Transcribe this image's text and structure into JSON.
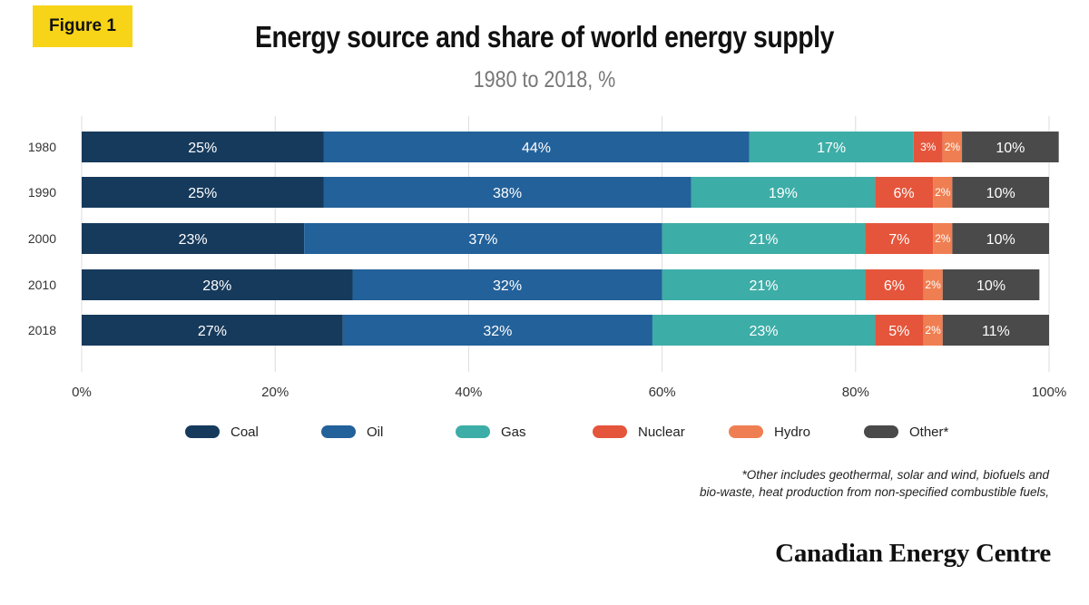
{
  "figure_label": "Figure 1",
  "chart_data": {
    "type": "bar",
    "orientation": "horizontal",
    "stacked": true,
    "title": "Energy source and share of world energy supply",
    "subtitle": "1980 to 2018, %",
    "categories": [
      "1980",
      "1990",
      "2000",
      "2010",
      "2018"
    ],
    "series": [
      {
        "name": "Coal",
        "color": "#163a5c",
        "values": [
          25,
          25,
          23,
          28,
          27
        ]
      },
      {
        "name": "Oil",
        "color": "#23619a",
        "values": [
          44,
          38,
          37,
          32,
          32
        ]
      },
      {
        "name": "Gas",
        "color": "#3dada7",
        "values": [
          17,
          19,
          21,
          21,
          23
        ]
      },
      {
        "name": "Nuclear",
        "color": "#e5553b",
        "values": [
          3,
          6,
          7,
          6,
          5
        ]
      },
      {
        "name": "Hydro",
        "color": "#ef7f52",
        "values": [
          2,
          2,
          2,
          2,
          2
        ]
      },
      {
        "name": "Other*",
        "color": "#4a4a4a",
        "values": [
          10,
          10,
          10,
          10,
          11
        ]
      }
    ],
    "xlim": [
      0,
      100
    ],
    "x_ticks": [
      "0%",
      "20%",
      "40%",
      "60%",
      "80%",
      "100%"
    ],
    "legend_position": "bottom",
    "grid": true
  },
  "footnote": {
    "line1": "*Other includes geothermal, solar and wind, biofuels and",
    "line2": "bio-waste, heat production from non-specified combustible fuels,"
  },
  "brand": "Canadian Energy Centre"
}
